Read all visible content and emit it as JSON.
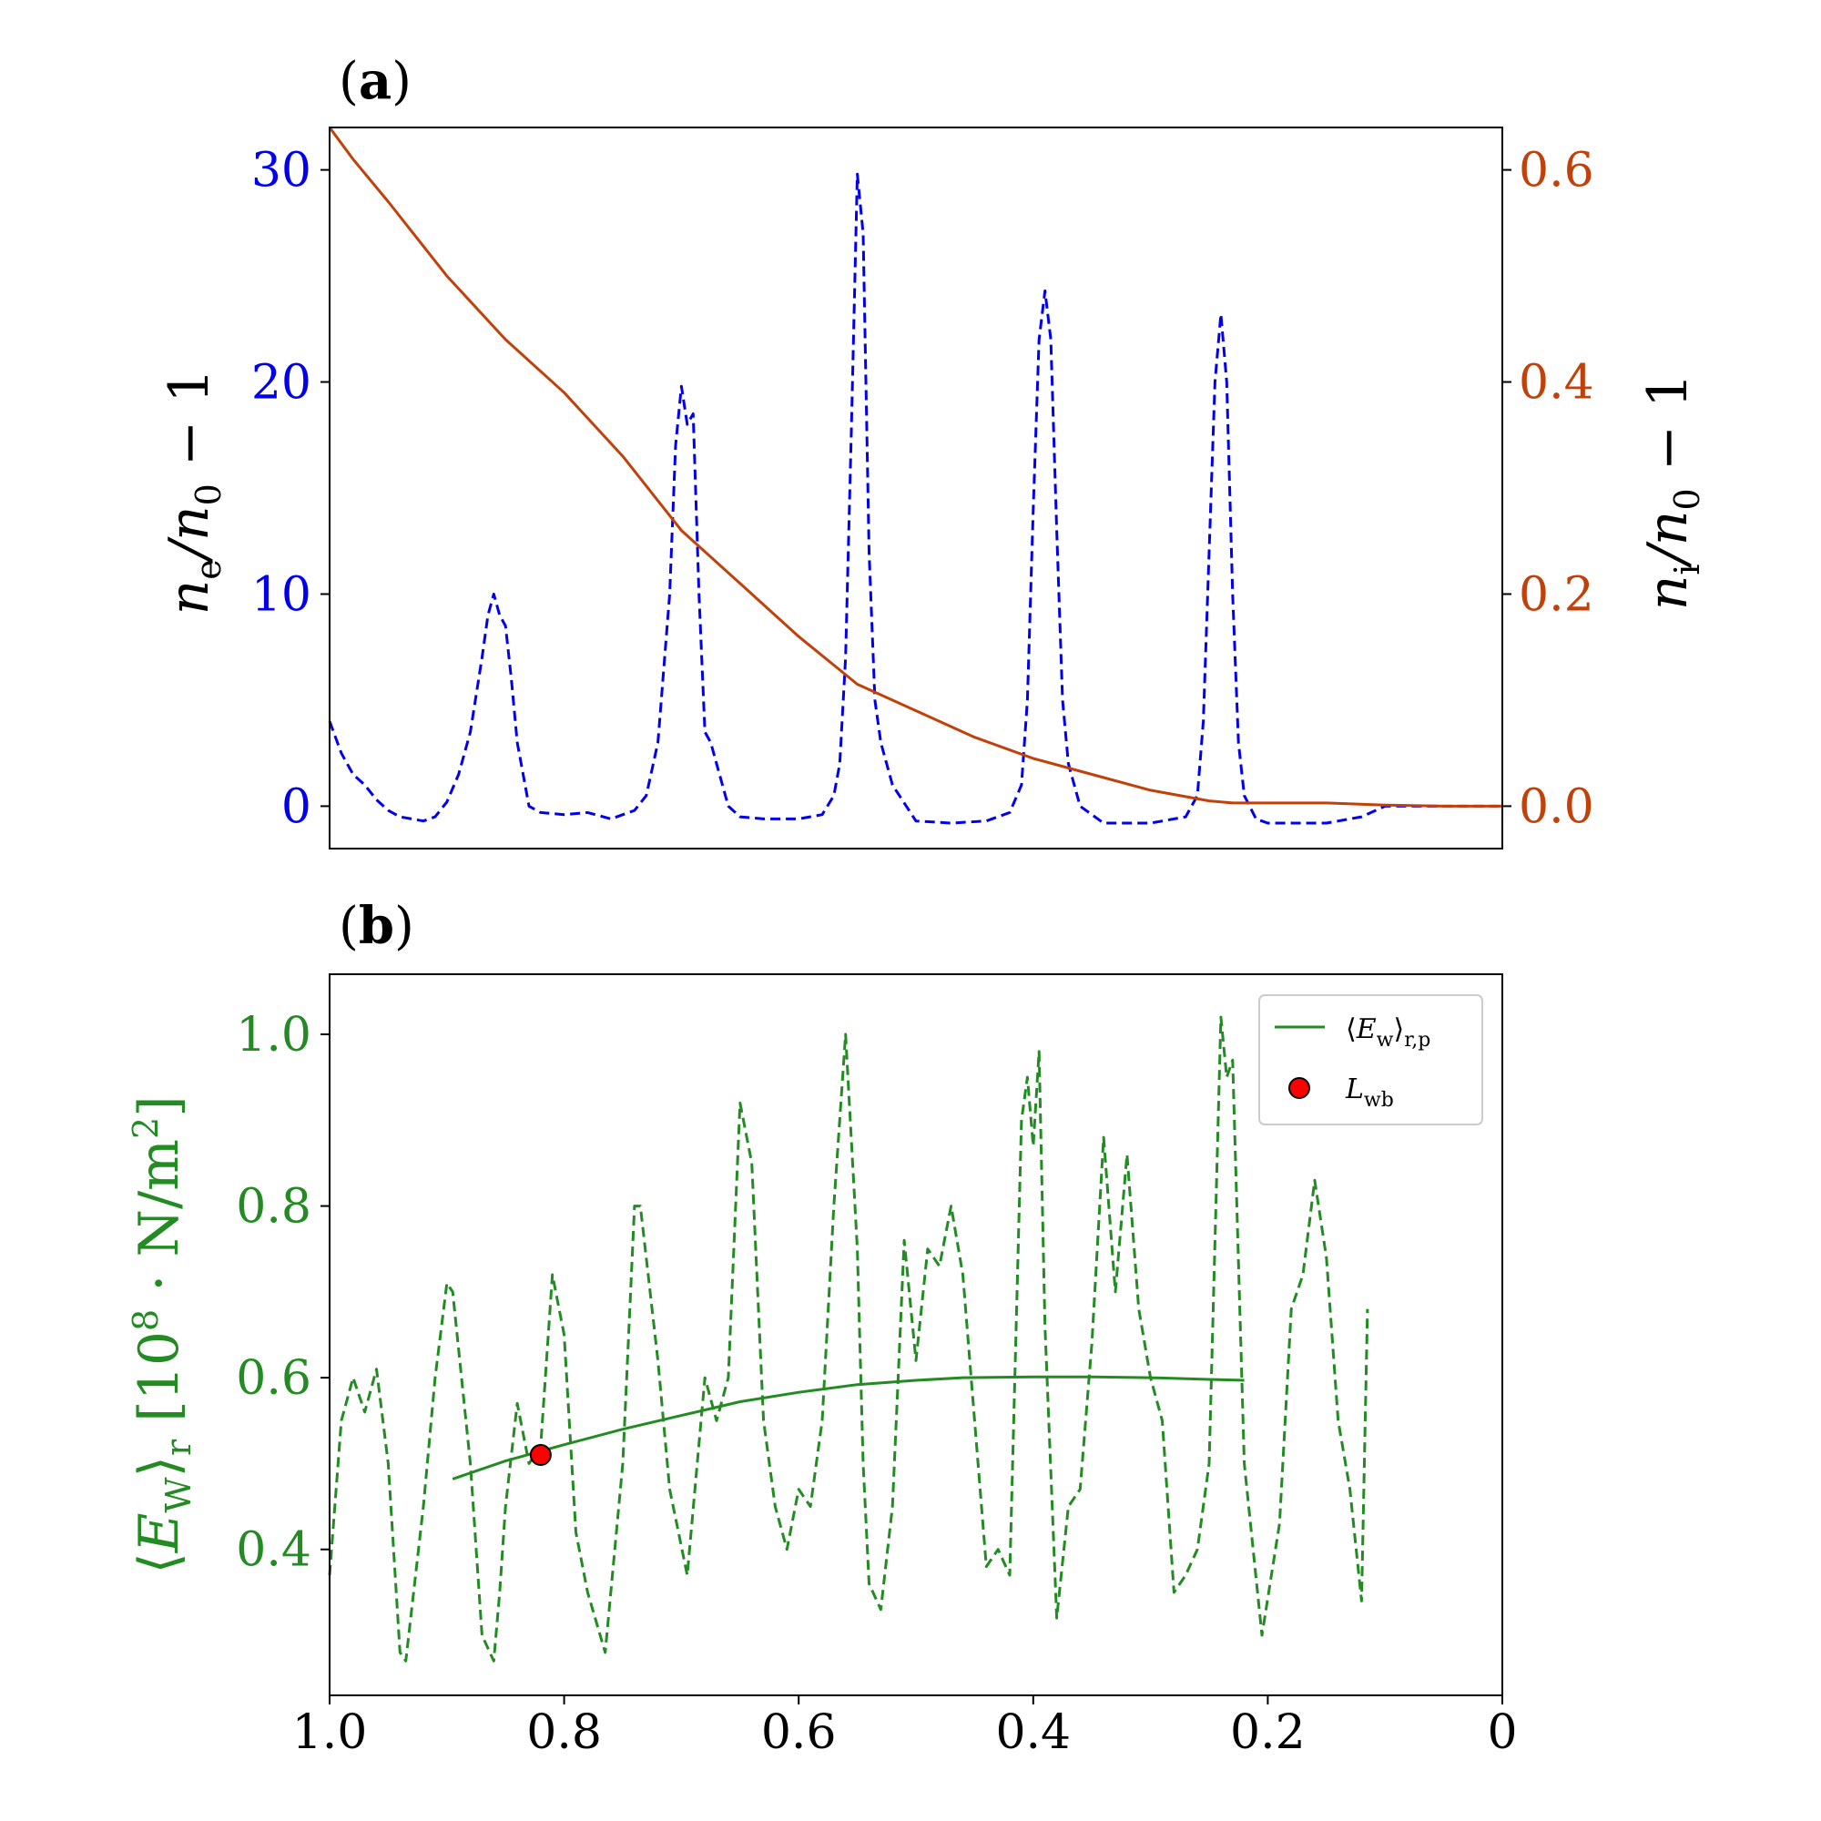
{
  "colors": {
    "ne": "#0000ee",
    "ni": "#c0410a",
    "ew": "#228b22",
    "marker": "#ff0000",
    "axis": "#000000"
  },
  "panels": {
    "a": {
      "label": "(a)",
      "left_ylabel": "n_e/n_0 − 1",
      "right_ylabel": "n_i/n_0 − 1"
    },
    "b": {
      "label": "(b)",
      "ylabel": "⟨E_W⟩_r [10^8 · N/m^2]"
    }
  },
  "chart_data": [
    {
      "panel": "a",
      "type": "line",
      "xlim": [
        1.0,
        0.0
      ],
      "ylim_left": [
        -2,
        32
      ],
      "ylim_right": [
        -0.04,
        0.64
      ],
      "yticks_left": [
        0,
        10,
        20,
        30
      ],
      "yticks_right": [
        0.0,
        0.2,
        0.4,
        0.6
      ],
      "ytick_labels_left": [
        "0",
        "10",
        "20",
        "30"
      ],
      "ytick_labels_right": [
        "0.0",
        "0.2",
        "0.4",
        "0.6"
      ],
      "series": [
        {
          "axis": "left",
          "style": "dashed",
          "x": [
            1.0,
            0.99,
            0.98,
            0.97,
            0.96,
            0.95,
            0.94,
            0.93,
            0.92,
            0.91,
            0.9,
            0.89,
            0.88,
            0.87,
            0.865,
            0.86,
            0.855,
            0.85,
            0.845,
            0.84,
            0.83,
            0.82,
            0.8,
            0.78,
            0.76,
            0.74,
            0.73,
            0.72,
            0.71,
            0.705,
            0.7,
            0.695,
            0.69,
            0.685,
            0.68,
            0.675,
            0.67,
            0.66,
            0.65,
            0.63,
            0.6,
            0.58,
            0.57,
            0.565,
            0.56,
            0.555,
            0.55,
            0.545,
            0.54,
            0.535,
            0.53,
            0.52,
            0.5,
            0.47,
            0.44,
            0.42,
            0.41,
            0.405,
            0.4,
            0.395,
            0.39,
            0.385,
            0.38,
            0.375,
            0.37,
            0.36,
            0.34,
            0.3,
            0.27,
            0.26,
            0.255,
            0.25,
            0.245,
            0.24,
            0.235,
            0.23,
            0.225,
            0.22,
            0.21,
            0.2,
            0.18,
            0.15,
            0.12,
            0.1,
            0.05,
            0.0
          ],
          "y": [
            4.0,
            2.5,
            1.5,
            1.0,
            0.3,
            -0.2,
            -0.5,
            -0.6,
            -0.7,
            -0.5,
            0.2,
            1.5,
            3.5,
            7.0,
            9.0,
            10.0,
            9.0,
            8.5,
            6.0,
            3.0,
            0.0,
            -0.3,
            -0.4,
            -0.3,
            -0.6,
            -0.2,
            0.5,
            3.0,
            10.0,
            17.0,
            19.8,
            18.0,
            18.5,
            10.0,
            3.5,
            3.0,
            2.0,
            0.0,
            -0.5,
            -0.6,
            -0.6,
            -0.4,
            0.5,
            2.0,
            7.0,
            18.0,
            29.8,
            27.0,
            12.0,
            5.0,
            3.0,
            1.0,
            -0.7,
            -0.8,
            -0.7,
            -0.3,
            1.0,
            5.0,
            14.0,
            22.0,
            24.3,
            22.0,
            13.0,
            5.0,
            2.0,
            0.0,
            -0.8,
            -0.8,
            -0.5,
            0.5,
            4.0,
            12.0,
            20.0,
            23.2,
            20.0,
            10.0,
            3.0,
            0.5,
            -0.6,
            -0.8,
            -0.8,
            -0.8,
            -0.5,
            0.0,
            0.0,
            0.0
          ]
        },
        {
          "axis": "right",
          "style": "solid",
          "x": [
            1.0,
            0.98,
            0.95,
            0.9,
            0.85,
            0.8,
            0.75,
            0.7,
            0.65,
            0.6,
            0.55,
            0.5,
            0.45,
            0.4,
            0.35,
            0.3,
            0.25,
            0.23,
            0.2,
            0.15,
            0.1,
            0.05,
            0.0
          ],
          "y": [
            0.64,
            0.61,
            0.57,
            0.5,
            0.44,
            0.39,
            0.33,
            0.26,
            0.21,
            0.16,
            0.115,
            0.09,
            0.065,
            0.045,
            0.03,
            0.015,
            0.005,
            0.003,
            0.003,
            0.003,
            0.001,
            0.0,
            0.0
          ]
        }
      ]
    },
    {
      "panel": "b",
      "type": "line",
      "xlim": [
        1.0,
        0.0
      ],
      "ylim": [
        0.23,
        1.07
      ],
      "xticks": [
        1.0,
        0.8,
        0.6,
        0.4,
        0.2,
        0.0
      ],
      "xtick_labels": [
        "1.0",
        "0.8",
        "0.6",
        "0.4",
        "0.2",
        "0"
      ],
      "yticks": [
        0.4,
        0.6,
        0.8,
        1.0
      ],
      "ytick_labels": [
        "0.4",
        "0.6",
        "0.8",
        "1.0"
      ],
      "legend": {
        "placement": "top-right",
        "entries": [
          "⟨E_w⟩_r,p",
          "L_wb"
        ]
      },
      "series": [
        {
          "style": "dashed",
          "x": [
            1.0,
            0.99,
            0.98,
            0.97,
            0.96,
            0.95,
            0.94,
            0.935,
            0.92,
            0.91,
            0.9,
            0.895,
            0.88,
            0.87,
            0.86,
            0.855,
            0.85,
            0.84,
            0.83,
            0.82,
            0.81,
            0.8,
            0.79,
            0.78,
            0.765,
            0.75,
            0.74,
            0.735,
            0.72,
            0.71,
            0.695,
            0.68,
            0.67,
            0.66,
            0.65,
            0.64,
            0.63,
            0.62,
            0.61,
            0.6,
            0.59,
            0.58,
            0.57,
            0.56,
            0.55,
            0.545,
            0.54,
            0.53,
            0.52,
            0.51,
            0.5,
            0.49,
            0.48,
            0.47,
            0.46,
            0.45,
            0.44,
            0.43,
            0.42,
            0.41,
            0.405,
            0.4,
            0.395,
            0.39,
            0.38,
            0.37,
            0.36,
            0.35,
            0.34,
            0.33,
            0.32,
            0.31,
            0.3,
            0.29,
            0.28,
            0.27,
            0.26,
            0.25,
            0.24,
            0.235,
            0.23,
            0.22,
            0.205,
            0.19,
            0.18,
            0.17,
            0.16,
            0.15,
            0.14,
            0.13,
            0.12,
            0.115
          ],
          "y": [
            0.37,
            0.55,
            0.6,
            0.56,
            0.61,
            0.5,
            0.28,
            0.27,
            0.45,
            0.6,
            0.71,
            0.7,
            0.5,
            0.3,
            0.27,
            0.35,
            0.45,
            0.57,
            0.5,
            0.52,
            0.72,
            0.65,
            0.42,
            0.35,
            0.28,
            0.5,
            0.8,
            0.8,
            0.62,
            0.47,
            0.37,
            0.6,
            0.55,
            0.6,
            0.92,
            0.85,
            0.55,
            0.45,
            0.4,
            0.47,
            0.45,
            0.55,
            0.8,
            1.0,
            0.75,
            0.5,
            0.36,
            0.33,
            0.45,
            0.76,
            0.62,
            0.75,
            0.73,
            0.8,
            0.72,
            0.55,
            0.38,
            0.4,
            0.37,
            0.9,
            0.95,
            0.87,
            0.98,
            0.66,
            0.32,
            0.45,
            0.47,
            0.64,
            0.88,
            0.7,
            0.86,
            0.68,
            0.6,
            0.55,
            0.35,
            0.37,
            0.4,
            0.5,
            1.02,
            0.95,
            0.97,
            0.5,
            0.3,
            0.43,
            0.68,
            0.72,
            0.83,
            0.74,
            0.55,
            0.47,
            0.34,
            0.68
          ]
        },
        {
          "style": "solid",
          "x": [
            0.895,
            0.85,
            0.8,
            0.75,
            0.7,
            0.65,
            0.6,
            0.55,
            0.5,
            0.46,
            0.4,
            0.35,
            0.3,
            0.25,
            0.22
          ],
          "y": [
            0.482,
            0.503,
            0.522,
            0.54,
            0.556,
            0.572,
            0.583,
            0.592,
            0.597,
            0.6,
            0.601,
            0.601,
            0.6,
            0.598,
            0.597
          ]
        },
        {
          "style": "marker",
          "x": [
            0.82
          ],
          "y": [
            0.51
          ]
        }
      ]
    }
  ]
}
